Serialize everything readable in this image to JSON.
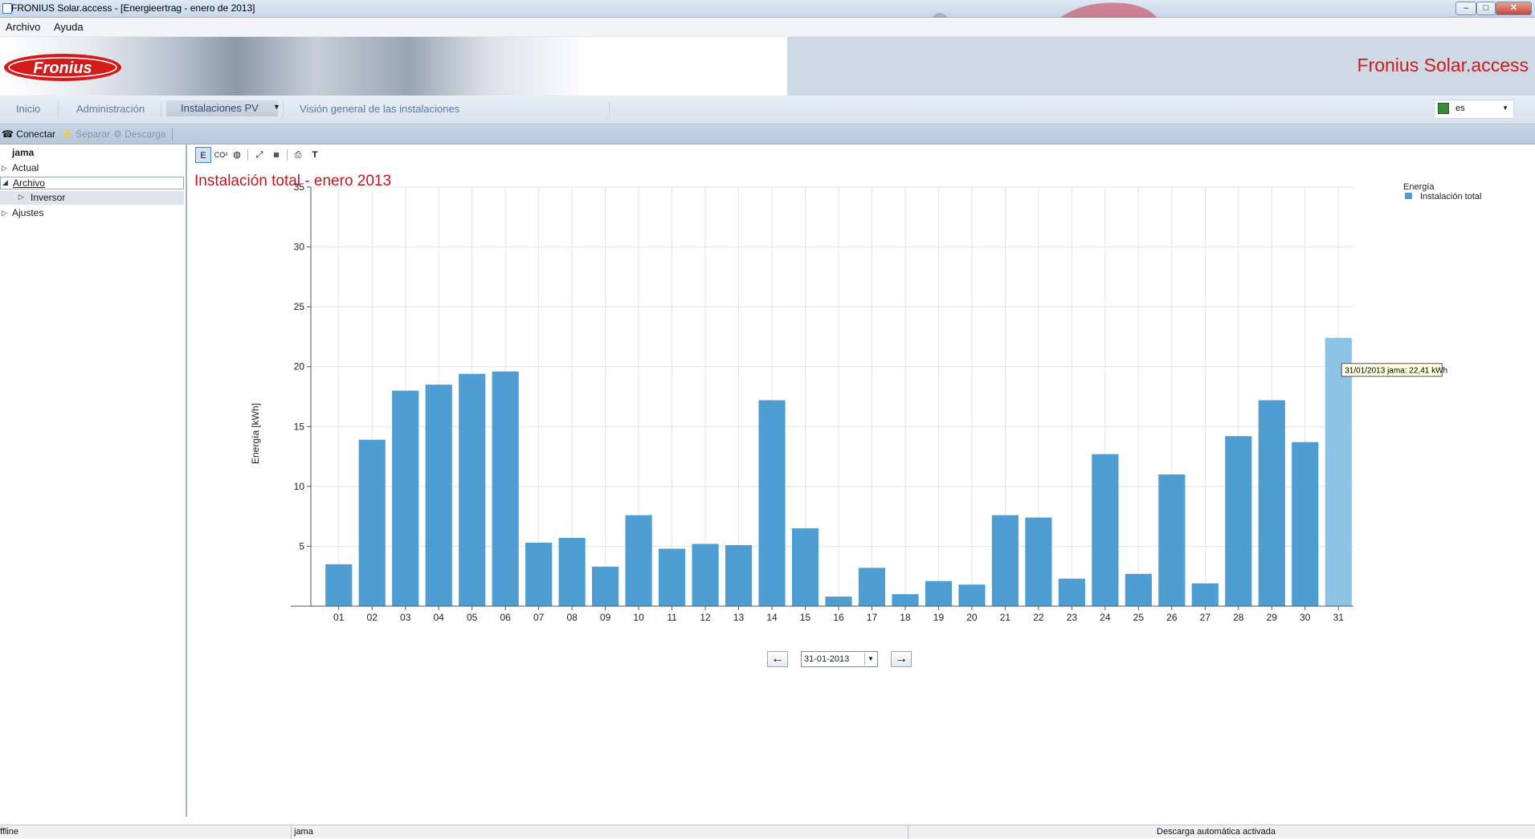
{
  "window": {
    "title": "FRONIUS Solar.access - [Energieertrag - enero de 2013]",
    "controls": [
      "minimize",
      "maximize",
      "close"
    ]
  },
  "menu": {
    "items": [
      "Archivo",
      "Ayuda"
    ]
  },
  "banner": {
    "brand_right": "Fronius Solar.access",
    "logo_text": "Fronius"
  },
  "tabs": {
    "items": [
      "Inicio",
      "Administración",
      "Instalaciones PV",
      "Visión general de las instalaciones"
    ],
    "active": "Instalaciones PV",
    "language": "es"
  },
  "toolbar": {
    "connect": "Conectar",
    "disconnect": "Separar",
    "download": "Descarga"
  },
  "tree": {
    "root": "jama",
    "items": [
      "Actual",
      "Archivo",
      "Inversor",
      "Ajustes"
    ]
  },
  "chart_tools": {
    "energy": "E",
    "co2": "CO²",
    "text": "T"
  },
  "chart_data": {
    "type": "bar",
    "title": "Instalación total - enero 2013",
    "ylabel": "Energía [kWh]",
    "xlabel": "",
    "ylim": [
      0,
      35
    ],
    "yticks": [
      5,
      10,
      15,
      20,
      25,
      30,
      35
    ],
    "categories": [
      "01",
      "02",
      "03",
      "04",
      "05",
      "06",
      "07",
      "08",
      "09",
      "10",
      "11",
      "12",
      "13",
      "14",
      "15",
      "16",
      "17",
      "18",
      "19",
      "20",
      "21",
      "22",
      "23",
      "24",
      "25",
      "26",
      "27",
      "28",
      "29",
      "30",
      "31"
    ],
    "series": [
      {
        "name": "Instalación total",
        "values": [
          3.5,
          13.9,
          18.0,
          18.5,
          19.4,
          19.6,
          5.3,
          5.7,
          3.3,
          7.6,
          4.8,
          5.2,
          5.1,
          17.2,
          6.5,
          0.8,
          3.2,
          1.0,
          2.1,
          1.8,
          7.6,
          7.4,
          2.3,
          12.7,
          2.7,
          11.0,
          1.9,
          14.2,
          17.2,
          13.7,
          22.41
        ]
      }
    ],
    "legend": {
      "title": "Energía",
      "placement": "top-right"
    },
    "grid": true,
    "colors": {
      "bar": "#4e9ed4",
      "highlight": "#8ec3e6",
      "title": "#c8141e"
    },
    "tooltip": {
      "text": "31/01/2013 jama: 22,41 kWh",
      "category": "31"
    }
  },
  "date_nav": {
    "selected": "31-01-2013"
  },
  "status": {
    "left": "ffline",
    "middle": "jama",
    "right": "Descarga automática activada"
  }
}
